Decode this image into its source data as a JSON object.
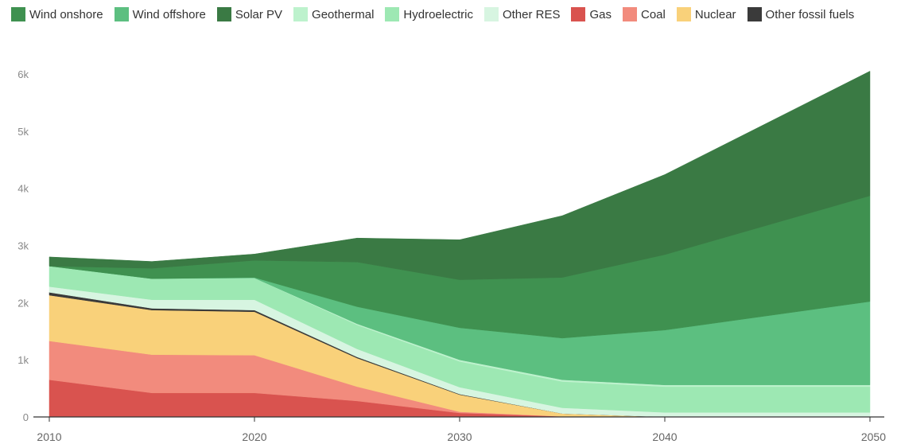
{
  "chart_data": {
    "type": "area",
    "stacked": true,
    "x": [
      2010,
      2015,
      2020,
      2025,
      2030,
      2035,
      2040,
      2050
    ],
    "ylim": [
      0,
      6000
    ],
    "yticks": [
      0,
      1000,
      2000,
      3000,
      4000,
      5000,
      6000
    ],
    "ytick_labels": [
      "0",
      "1k",
      "2k",
      "3k",
      "4k",
      "5k",
      "6k"
    ],
    "xticks": [
      2010,
      2020,
      2030,
      2040,
      2050
    ],
    "xtick_labels": [
      "2010",
      "2020",
      "2030",
      "2040",
      "2050"
    ],
    "title": "",
    "xlabel": "",
    "ylabel": "",
    "grid": false,
    "legend_position": "top",
    "series": [
      {
        "name": "Gas",
        "color": "#d9534f",
        "values": [
          650,
          420,
          420,
          280,
          70,
          10,
          0,
          0
        ]
      },
      {
        "name": "Coal",
        "color": "#f28b7d",
        "values": [
          680,
          670,
          660,
          250,
          20,
          0,
          0,
          0
        ]
      },
      {
        "name": "Nuclear",
        "color": "#f9d17a",
        "values": [
          800,
          780,
          760,
          500,
          300,
          50,
          0,
          0
        ]
      },
      {
        "name": "Other fossil fuels",
        "color": "#3a3a3a",
        "values": [
          50,
          30,
          30,
          20,
          10,
          0,
          0,
          0
        ]
      },
      {
        "name": "Other RES",
        "color": "#d7f5e1",
        "values": [
          100,
          150,
          180,
          140,
          120,
          100,
          80,
          80
        ]
      },
      {
        "name": "Hydroelectric",
        "color": "#9de8b3",
        "values": [
          360,
          370,
          380,
          420,
          450,
          460,
          450,
          450
        ]
      },
      {
        "name": "Geothermal",
        "color": "#bdf2cd",
        "values": [
          0,
          0,
          0,
          20,
          30,
          30,
          30,
          30
        ]
      },
      {
        "name": "Wind offshore",
        "color": "#5cbf80",
        "values": [
          0,
          0,
          10,
          300,
          560,
          730,
          960,
          1460
        ]
      },
      {
        "name": "Wind onshore",
        "color": "#3f9150",
        "values": [
          0,
          180,
          300,
          780,
          840,
          1060,
          1320,
          1850
        ]
      },
      {
        "name": "Solar PV",
        "color": "#3a7a44",
        "values": [
          160,
          120,
          110,
          420,
          700,
          1080,
          1400,
          2180
        ]
      }
    ]
  },
  "legend": [
    {
      "label": "Wind onshore",
      "color": "#3f9150"
    },
    {
      "label": "Wind offshore",
      "color": "#5cbf80"
    },
    {
      "label": "Solar PV",
      "color": "#3a7a44"
    },
    {
      "label": "Geothermal",
      "color": "#bdf2cd"
    },
    {
      "label": "Hydroelectric",
      "color": "#9de8b3"
    },
    {
      "label": "Other RES",
      "color": "#d7f5e1"
    },
    {
      "label": "Gas",
      "color": "#d9534f"
    },
    {
      "label": "Coal",
      "color": "#f28b7d"
    },
    {
      "label": "Nuclear",
      "color": "#f9d17a"
    },
    {
      "label": "Other fossil fuels",
      "color": "#3a3a3a"
    }
  ]
}
